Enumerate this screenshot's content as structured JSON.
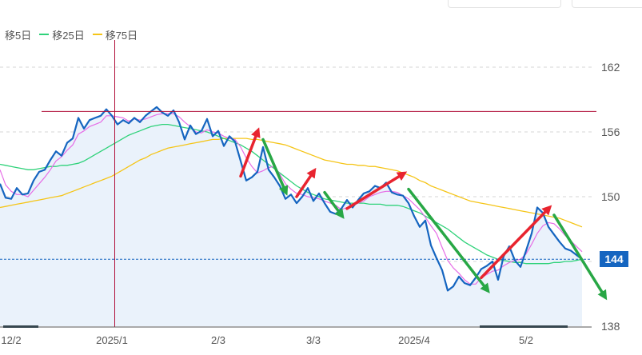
{
  "legend": {
    "items": [
      {
        "label": "移5日",
        "color": "#e66de6"
      },
      {
        "label": "移25日",
        "color": "#2fd27a"
      },
      {
        "label": "移75日",
        "color": "#f5c518"
      }
    ]
  },
  "price_badge": {
    "label": "144",
    "color": "#1565c0"
  },
  "colors": {
    "price_line": "#1565c0",
    "price_fill": "#eaf2fb",
    "crosshair": "#b0103a",
    "up_arrow": "#e8242f",
    "down_arrow": "#28a745"
  },
  "chart_data": {
    "type": "line",
    "y_range": [
      138,
      164
    ],
    "y_ticks": [
      {
        "value": 162,
        "label": "162"
      },
      {
        "value": 156,
        "label": "156"
      },
      {
        "value": 150,
        "label": "150"
      },
      {
        "value": 144,
        "label": "144"
      },
      {
        "value": 138,
        "label": "138"
      }
    ],
    "x_ticks": [
      {
        "index": 0,
        "label": "12/2"
      },
      {
        "index": 20,
        "label": "2025/1"
      },
      {
        "index": 39,
        "label": "2/3"
      },
      {
        "index": 56,
        "label": "3/3"
      },
      {
        "index": 74,
        "label": "2025/4"
      },
      {
        "index": 94,
        "label": "5/2"
      }
    ],
    "crosshair": {
      "index": 20.5,
      "value": 157.9
    },
    "current_price": 144.2,
    "series": [
      {
        "name": "",
        "role": "price",
        "values": [
          151.2,
          149.9,
          149.8,
          150.8,
          150.2,
          150.3,
          151.5,
          152.3,
          152.5,
          153.4,
          154.2,
          153.8,
          155.0,
          155.4,
          157.3,
          156.3,
          157.1,
          157.3,
          157.5,
          158.1,
          157.5,
          156.7,
          157.1,
          156.8,
          157.3,
          156.9,
          157.5,
          157.9,
          158.3,
          157.8,
          157.5,
          158.0,
          156.9,
          155.3,
          156.6,
          155.8,
          156.1,
          157.2,
          155.6,
          156.1,
          154.7,
          155.6,
          155.1,
          153.3,
          151.5,
          151.8,
          152.3,
          154.6,
          152.5,
          151.8,
          151.0,
          149.8,
          150.2,
          149.4,
          150.0,
          150.8,
          149.6,
          150.3,
          149.4,
          148.6,
          148.4,
          148.9,
          149.7,
          149.0,
          149.7,
          150.3,
          150.5,
          151.0,
          150.8,
          151.3,
          150.4,
          150.2,
          150.1,
          149.4,
          148.2,
          147.2,
          147.8,
          145.5,
          144.3,
          143.2,
          141.3,
          141.7,
          142.6,
          142.0,
          141.8,
          142.5,
          143.3,
          143.6,
          144.0,
          142.3,
          144.5,
          145.4,
          144.1,
          143.5,
          145.0,
          146.6,
          149.0,
          148.5,
          147.2,
          146.5,
          145.8,
          145.2,
          145.0,
          144.6,
          144.2
        ]
      },
      {
        "name": "移5日",
        "values": [
          152.5,
          151.1,
          150.5,
          150.2,
          150.2,
          150.0,
          150.6,
          151.2,
          151.8,
          152.5,
          153.3,
          153.7,
          154.3,
          154.8,
          155.8,
          156.1,
          156.5,
          156.7,
          156.9,
          157.5,
          157.5,
          157.4,
          157.3,
          157.0,
          157.2,
          157.1,
          157.2,
          157.4,
          157.6,
          157.7,
          157.7,
          157.7,
          157.4,
          156.9,
          156.5,
          156.0,
          155.9,
          156.2,
          156.0,
          155.9,
          155.6,
          155.4,
          155.3,
          154.6,
          153.6,
          152.8,
          152.2,
          152.4,
          152.7,
          152.8,
          152.1,
          151.2,
          150.7,
          150.3,
          150.2,
          150.0,
          149.9,
          149.8,
          149.6,
          149.4,
          149.2,
          148.8,
          149.0,
          149.2,
          149.4,
          149.6,
          150.0,
          150.2,
          150.4,
          150.5,
          150.5,
          150.4,
          150.1,
          149.8,
          149.3,
          148.8,
          148.1,
          147.3,
          146.6,
          145.3,
          144.1,
          143.4,
          142.9,
          142.3,
          141.9,
          141.9,
          142.5,
          142.8,
          143.1,
          143.2,
          143.6,
          143.9,
          144.1,
          144.2,
          144.7,
          145.6,
          146.6,
          147.3,
          147.6,
          147.5,
          147.0,
          146.4,
          145.9,
          145.4,
          144.9
        ]
      },
      {
        "name": "移25日",
        "values": [
          153.0,
          152.9,
          152.8,
          152.7,
          152.6,
          152.5,
          152.5,
          152.6,
          152.7,
          152.8,
          152.8,
          152.9,
          152.9,
          153.0,
          153.1,
          153.3,
          153.6,
          153.9,
          154.2,
          154.5,
          154.8,
          155.1,
          155.4,
          155.7,
          155.9,
          156.1,
          156.3,
          156.5,
          156.6,
          156.7,
          156.7,
          156.6,
          156.5,
          156.4,
          156.3,
          156.2,
          156.1,
          156.0,
          155.8,
          155.6,
          155.4,
          155.2,
          155.0,
          154.8,
          154.5,
          154.2,
          153.8,
          153.4,
          153.0,
          152.6,
          152.2,
          151.8,
          151.4,
          151.0,
          150.7,
          150.4,
          150.2,
          150.0,
          149.8,
          149.7,
          149.6,
          149.5,
          149.4,
          149.4,
          149.4,
          149.4,
          149.3,
          149.3,
          149.3,
          149.2,
          149.2,
          149.2,
          149.1,
          148.9,
          148.7,
          148.5,
          148.2,
          147.9,
          147.6,
          147.3,
          147.0,
          146.6,
          146.2,
          145.8,
          145.5,
          145.2,
          144.9,
          144.6,
          144.4,
          144.2,
          144.1,
          144.0,
          143.9,
          143.9,
          143.8,
          143.8,
          143.8,
          143.8,
          143.8,
          143.9,
          143.9,
          144.0,
          144.0,
          144.1,
          144.2
        ]
      },
      {
        "name": "移75日",
        "values": [
          149.0,
          149.1,
          149.2,
          149.3,
          149.4,
          149.5,
          149.6,
          149.7,
          149.8,
          149.9,
          150.0,
          150.1,
          150.3,
          150.5,
          150.7,
          150.9,
          151.1,
          151.3,
          151.5,
          151.7,
          151.9,
          152.2,
          152.5,
          152.8,
          153.1,
          153.4,
          153.6,
          153.9,
          154.1,
          154.3,
          154.5,
          154.6,
          154.7,
          154.8,
          154.9,
          155.0,
          155.1,
          155.2,
          155.3,
          155.3,
          155.4,
          155.4,
          155.4,
          155.4,
          155.4,
          155.3,
          155.3,
          155.2,
          155.1,
          155.0,
          154.9,
          154.8,
          154.6,
          154.4,
          154.2,
          154.0,
          153.8,
          153.6,
          153.4,
          153.3,
          153.2,
          153.1,
          153.0,
          153.0,
          152.9,
          152.9,
          152.8,
          152.8,
          152.7,
          152.6,
          152.5,
          152.4,
          152.2,
          152.0,
          151.8,
          151.5,
          151.3,
          151.0,
          150.8,
          150.6,
          150.4,
          150.2,
          150.0,
          149.8,
          149.6,
          149.5,
          149.4,
          149.3,
          149.2,
          149.1,
          149.0,
          148.9,
          148.8,
          148.7,
          148.6,
          148.5,
          148.4,
          148.3,
          148.2,
          148.1,
          148.0,
          147.8,
          147.6,
          147.4,
          147.2
        ]
      }
    ],
    "annotations": [
      {
        "type": "up-arrow",
        "from": [
          43,
          151.9
        ],
        "to": [
          46,
          156.0
        ]
      },
      {
        "type": "down-arrow",
        "from": [
          47,
          155.3
        ],
        "to": [
          51,
          150.5
        ]
      },
      {
        "type": "up-arrow",
        "from": [
          53,
          150.0
        ],
        "to": [
          56,
          152.3
        ]
      },
      {
        "type": "down-arrow",
        "from": [
          58,
          150.4
        ],
        "to": [
          61,
          148.3
        ]
      },
      {
        "type": "up-arrow",
        "from": [
          62,
          148.9
        ],
        "to": [
          72,
          152.1
        ]
      },
      {
        "type": "down-arrow",
        "from": [
          73,
          150.7
        ],
        "to": [
          87,
          141.4
        ]
      },
      {
        "type": "up-arrow",
        "from": [
          86,
          142.5
        ],
        "to": [
          98,
          148.9
        ]
      },
      {
        "type": "down-arrow",
        "from": [
          99,
          148.3
        ],
        "to": [
          108,
          140.8
        ]
      }
    ]
  }
}
